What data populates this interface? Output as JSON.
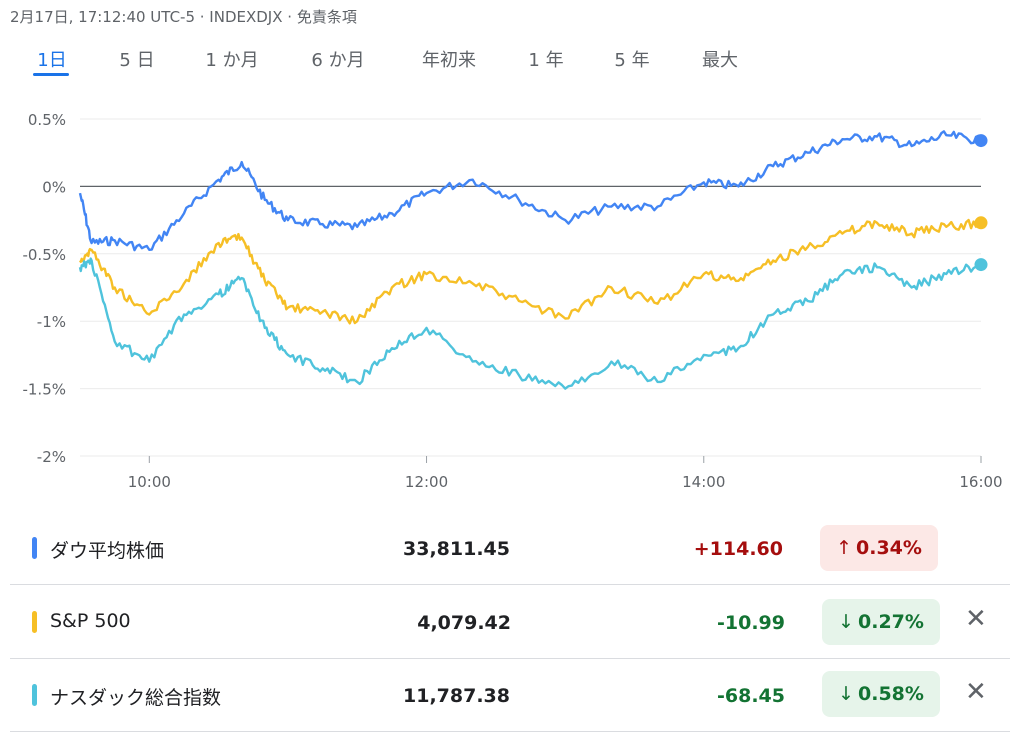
{
  "header": {
    "timestamp": "2月17日, 17:12:40 UTC-5 · INDEXDJX ·",
    "disclaimer": "免責条項"
  },
  "tabs": [
    "1日",
    "5 日",
    "1 か月",
    "6 か月",
    "年初来",
    "1 年",
    "5 年",
    "最大"
  ],
  "active_tab": "1日",
  "chart_data": {
    "type": "line",
    "x_ticks": [
      "10:00",
      "12:00",
      "14:00",
      "16:00"
    ],
    "xlim": [
      "09:30",
      "16:00"
    ],
    "ylim": [
      -2,
      0.5
    ],
    "y_ticks": [
      "0.5%",
      "0%",
      "-0.5%",
      "-1%",
      "-1.5%",
      "-2%"
    ],
    "y_tick_values": [
      0.5,
      0,
      -0.5,
      -1,
      -1.5,
      -2
    ],
    "grid": true,
    "series": [
      {
        "name": "ダウ平均株価",
        "color": "#4285f4",
        "x": [
          "09:30",
          "09:35",
          "09:45",
          "10:00",
          "10:15",
          "10:30",
          "10:40",
          "10:50",
          "11:00",
          "11:15",
          "11:30",
          "11:45",
          "12:00",
          "12:20",
          "12:40",
          "13:00",
          "13:20",
          "13:40",
          "14:00",
          "14:15",
          "14:30",
          "14:45",
          "15:00",
          "15:15",
          "15:30",
          "15:45",
          "16:00"
        ],
        "values": [
          -0.05,
          -0.42,
          -0.4,
          -0.47,
          -0.2,
          0.05,
          0.18,
          -0.1,
          -0.25,
          -0.28,
          -0.3,
          -0.2,
          -0.05,
          0.05,
          -0.1,
          -0.25,
          -0.15,
          -0.15,
          0.03,
          0.0,
          0.15,
          0.25,
          0.35,
          0.37,
          0.3,
          0.38,
          0.34
        ]
      },
      {
        "name": "S&P 500",
        "color": "#f6bf26",
        "x": [
          "09:30",
          "09:35",
          "09:45",
          "10:00",
          "10:15",
          "10:30",
          "10:40",
          "10:50",
          "11:00",
          "11:15",
          "11:30",
          "11:45",
          "12:00",
          "12:20",
          "12:40",
          "13:00",
          "13:20",
          "13:40",
          "14:00",
          "14:15",
          "14:30",
          "14:45",
          "15:00",
          "15:15",
          "15:30",
          "15:45",
          "16:00"
        ],
        "values": [
          -0.55,
          -0.47,
          -0.75,
          -0.95,
          -0.72,
          -0.42,
          -0.38,
          -0.7,
          -0.9,
          -0.93,
          -1.0,
          -0.75,
          -0.65,
          -0.72,
          -0.85,
          -0.98,
          -0.75,
          -0.87,
          -0.65,
          -0.7,
          -0.55,
          -0.45,
          -0.35,
          -0.27,
          -0.35,
          -0.3,
          -0.27
        ]
      },
      {
        "name": "ナスダック総合指数",
        "color": "#4fc3dc",
        "x": [
          "09:30",
          "09:35",
          "09:45",
          "10:00",
          "10:15",
          "10:30",
          "10:40",
          "10:50",
          "11:00",
          "11:15",
          "11:30",
          "11:45",
          "12:00",
          "12:20",
          "12:40",
          "13:00",
          "13:20",
          "13:40",
          "14:00",
          "14:15",
          "14:30",
          "14:45",
          "15:00",
          "15:15",
          "15:30",
          "15:45",
          "16:00"
        ],
        "values": [
          -0.6,
          -0.55,
          -1.15,
          -1.3,
          -0.95,
          -0.8,
          -0.68,
          -1.05,
          -1.25,
          -1.35,
          -1.45,
          -1.2,
          -1.05,
          -1.3,
          -1.4,
          -1.5,
          -1.3,
          -1.45,
          -1.25,
          -1.2,
          -0.95,
          -0.85,
          -0.65,
          -0.6,
          -0.75,
          -0.65,
          -0.58
        ]
      }
    ]
  },
  "indices": [
    {
      "name": "ダウ平均株価",
      "color": "#4285f4",
      "value": "33,811.45",
      "change": "+114.60",
      "change_color": "#a50e0e",
      "pct": "0.34%",
      "arrow": "↑",
      "pill_bg": "#fce8e6",
      "pill_color": "#a50e0e",
      "removable": false
    },
    {
      "name": "S&P 500",
      "color": "#f6bf26",
      "value": "4,079.42",
      "change": "-10.99",
      "change_color": "#137333",
      "pct": "0.27%",
      "arrow": "↓",
      "pill_bg": "#e6f4ea",
      "pill_color": "#137333",
      "removable": true,
      "close_icon": "✕"
    },
    {
      "name": "ナスダック総合指数",
      "color": "#4fc3dc",
      "value": "11,787.38",
      "change": "-68.45",
      "change_color": "#137333",
      "pct": "0.58%",
      "arrow": "↓",
      "pill_bg": "#e6f4ea",
      "pill_color": "#137333",
      "removable": true,
      "close_icon": "✕"
    }
  ]
}
